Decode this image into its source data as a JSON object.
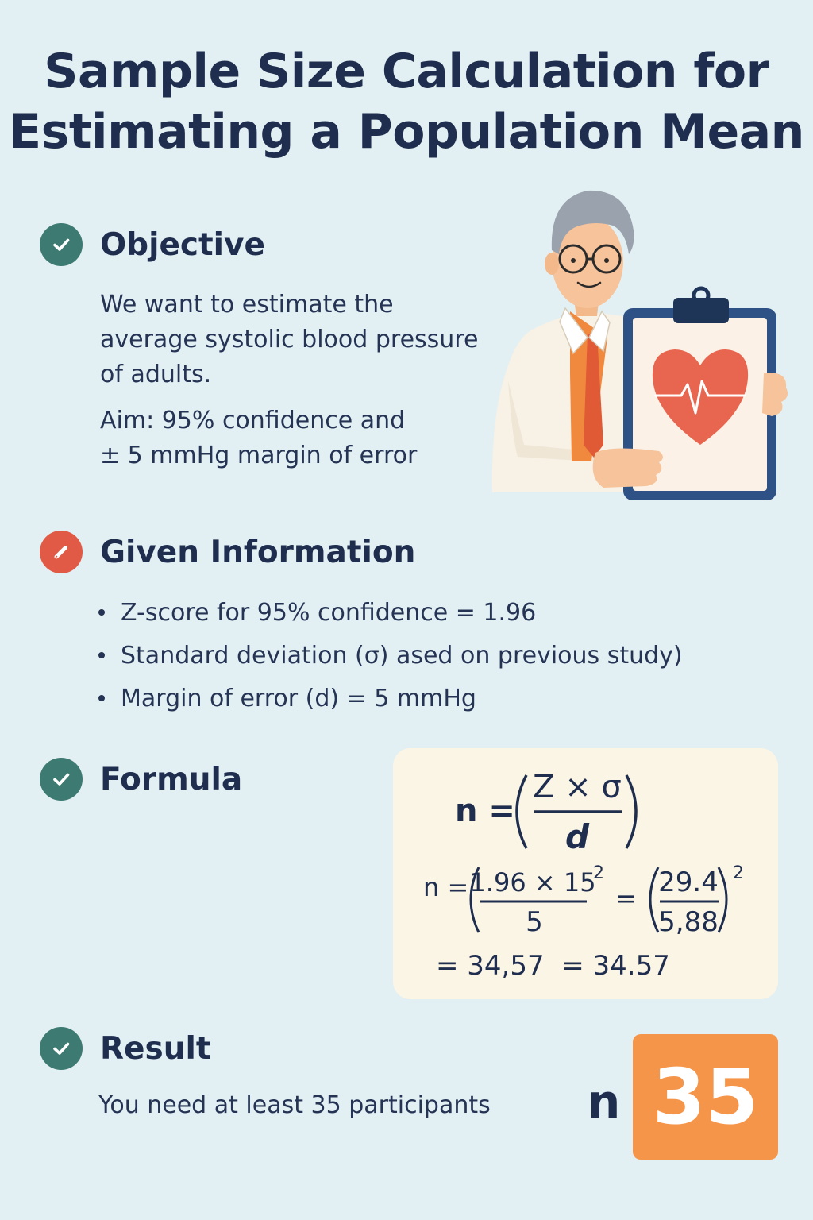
{
  "title": {
    "line1": "Sample Size Calculation for",
    "line2": "Estimating a Population Mean"
  },
  "objective": {
    "heading": "Objective",
    "icon": "check-icon",
    "text_lines": [
      "We want to estimate the",
      "average systolic blood pressure",
      "of adults."
    ],
    "aim_lines": [
      "Aim: 95% confidence and",
      "± 5 mmHg margin of error"
    ]
  },
  "given": {
    "heading": "Given Information",
    "icon": "pencil-icon",
    "items": [
      "Z-score for 95% confidence = 1.96",
      "Standard deviation (σ) ased on previous study)",
      "Margin of error (d) = 5 mmHg"
    ]
  },
  "formula": {
    "heading": "Formula",
    "icon": "check-icon",
    "general": {
      "lhs": "n =",
      "numerator": "Z × σ",
      "denominator": "d"
    },
    "substituted": {
      "lhs": "n =",
      "numerator1": "1.96 × 15",
      "exp1": "2",
      "denominator1": "5",
      "equals": "=",
      "numerator2": "29.4",
      "denominator2": "5,88",
      "exp2": "2"
    },
    "result_line": "= 34,57  = 34.57"
  },
  "result": {
    "heading": "Result",
    "icon": "check-icon",
    "text": "You need at least 35 participants",
    "n_label": "n",
    "value": "35"
  },
  "colors": {
    "background": "#e3f0f3",
    "navy": "#1f2d4e",
    "green_badge": "#3d7a72",
    "red_badge": "#e05a45",
    "result_orange": "#f5954a",
    "card": "#fbf5e6"
  }
}
